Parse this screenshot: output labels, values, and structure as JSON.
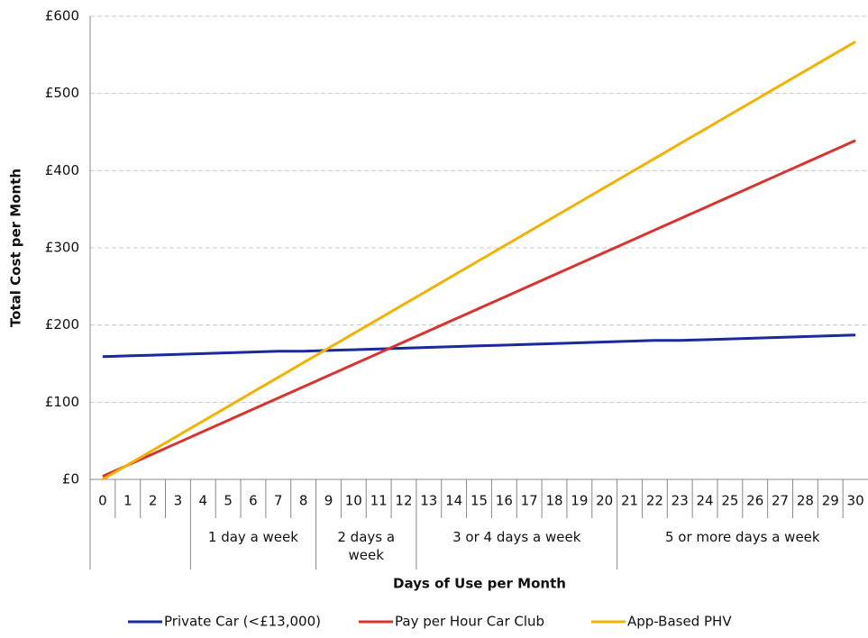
{
  "chart_data": {
    "type": "line",
    "x_label": "Days of Use per Month",
    "y_label": "Total Cost per Month",
    "categories": [
      "0",
      "1",
      "2",
      "3",
      "4",
      "5",
      "6",
      "7",
      "8",
      "9",
      "10",
      "11",
      "12",
      "13",
      "14",
      "15",
      "16",
      "17",
      "18",
      "19",
      "20",
      "21",
      "22",
      "23",
      "24",
      "25",
      "26",
      "27",
      "28",
      "29",
      "30"
    ],
    "category_groups": [
      {
        "label": "1 day a week",
        "from": 4,
        "to": 8
      },
      {
        "label": "2 days a week",
        "from": 9,
        "to": 12
      },
      {
        "label": "3 or 4 days a week",
        "from": 13,
        "to": 20
      },
      {
        "label": "5 or more days a week",
        "from": 21,
        "to": 30
      }
    ],
    "ylim": [
      0,
      600
    ],
    "yticks": [
      {
        "value": 0,
        "label": "£0"
      },
      {
        "value": 100,
        "label": "£100"
      },
      {
        "value": 200,
        "label": "£200"
      },
      {
        "value": 300,
        "label": "£300"
      },
      {
        "value": 400,
        "label": "£400"
      },
      {
        "value": 500,
        "label": "£500"
      },
      {
        "value": 600,
        "label": "£600"
      }
    ],
    "grid": true,
    "legend": "bottom",
    "series": [
      {
        "name": "Private Car (<£13,000)",
        "color": "#1a2a9a",
        "values": [
          159,
          160,
          161,
          162,
          163,
          164,
          165,
          166,
          166,
          167,
          168,
          169,
          170,
          171,
          172,
          173,
          174,
          175,
          176,
          177,
          178,
          179,
          180,
          180,
          181,
          182,
          183,
          184,
          185,
          186,
          187
        ]
      },
      {
        "name": "Pay per Hour Car Club",
        "color": "#d9332f",
        "values": [
          4,
          18.5,
          33,
          47.5,
          62,
          76.5,
          91,
          105.5,
          120,
          134.5,
          149,
          163.5,
          178,
          192.5,
          207,
          221.5,
          236,
          250.5,
          265,
          279.5,
          294,
          308.5,
          323,
          337.5,
          352,
          366.5,
          381,
          395.5,
          410,
          424.5,
          439
        ]
      },
      {
        "name": "App-Based PHV",
        "color": "#f0b400",
        "values": [
          0,
          18.9,
          37.8,
          56.7,
          75.6,
          94.5,
          113.4,
          132.3,
          151.2,
          170.1,
          189,
          207.9,
          226.8,
          245.7,
          264.6,
          283.5,
          302.4,
          321.3,
          340.2,
          359.1,
          378,
          396.9,
          415.8,
          434.7,
          453.6,
          472.5,
          491.4,
          510.3,
          529.2,
          548.1,
          567
        ]
      }
    ]
  }
}
